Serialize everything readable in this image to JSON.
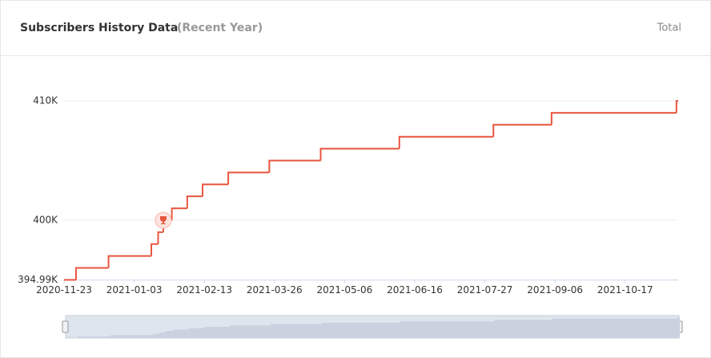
{
  "chart_data": {
    "type": "step-line",
    "title": "Subscribers History Data",
    "subtitle": "(Recent Year)",
    "toggle_label": "Total",
    "x": [
      "2020-11-23",
      "2020-11-30",
      "2020-12-19",
      "2021-01-13",
      "2021-01-17",
      "2021-01-20",
      "2021-01-25",
      "2021-02-03",
      "2021-02-12",
      "2021-02-27",
      "2021-03-23",
      "2021-04-22",
      "2021-06-07",
      "2021-08-01",
      "2021-09-04",
      "2021-11-16",
      "2021-11-17"
    ],
    "series": [
      {
        "name": "Subscribers",
        "color": "#e8553e",
        "values": [
          395000,
          396000,
          397000,
          398000,
          399000,
          400000,
          401000,
          402000,
          403000,
          404000,
          405000,
          406000,
          407000,
          408000,
          409000,
          410000,
          410000
        ]
      }
    ],
    "xlim": [
      "2020-11-23",
      "2021-11-17"
    ],
    "xticks": [
      "2020-11-23",
      "2021-01-03",
      "2021-02-13",
      "2021-03-26",
      "2021-05-06",
      "2021-06-16",
      "2021-07-27",
      "2021-09-06",
      "2021-10-17"
    ],
    "ylim": [
      394990,
      410000
    ],
    "yticks": [
      {
        "value": 394990,
        "label": "394.99K"
      },
      {
        "value": 400000,
        "label": "400K"
      },
      {
        "value": 410000,
        "label": "410K"
      }
    ],
    "grid": true
  }
}
